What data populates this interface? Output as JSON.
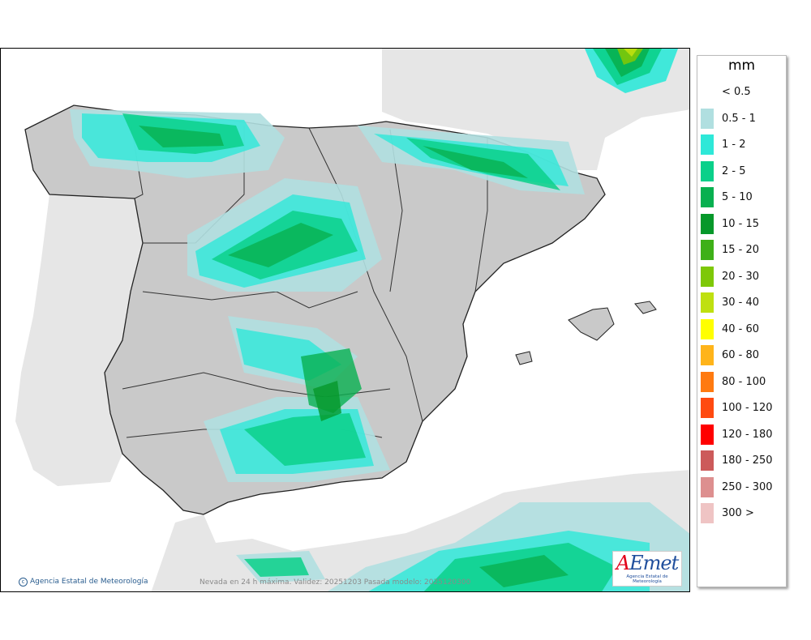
{
  "map": {
    "credit": "Agencia Estatal de Meteorología",
    "caption": "Nevada en 24 h máxima. Validez: 20251203 Pasada modelo: 2025120300",
    "logo": {
      "wordmark_a": "A",
      "wordmark_rest": "Emet",
      "sublabel": "Agencia Estatal de Meteorología"
    },
    "colors": {
      "sea": "#ffffff",
      "land": "#c9c9c9",
      "other_land": "#e6e6e6",
      "borders": "#222222"
    }
  },
  "legend": {
    "unit": "mm",
    "items": [
      {
        "label": "< 0.5",
        "color": "#ffffff"
      },
      {
        "label": "0.5 - 1",
        "color": "#b0dfe0"
      },
      {
        "label": "1 - 2",
        "color": "#2ee8d8"
      },
      {
        "label": "2 - 5",
        "color": "#0ad08a"
      },
      {
        "label": "5 - 10",
        "color": "#08b050"
      },
      {
        "label": "10 - 15",
        "color": "#06982a"
      },
      {
        "label": "15 - 20",
        "color": "#3eb018"
      },
      {
        "label": "20 - 30",
        "color": "#7ec808"
      },
      {
        "label": "30 - 40",
        "color": "#bfe010"
      },
      {
        "label": "40 - 60",
        "color": "#ffff00"
      },
      {
        "label": "60 - 80",
        "color": "#ffb41a"
      },
      {
        "label": "80 - 100",
        "color": "#ff7a10"
      },
      {
        "label": "100 - 120",
        "color": "#ff4a10"
      },
      {
        "label": "120 - 180",
        "color": "#ff0000"
      },
      {
        "label": "180 - 250",
        "color": "#cc5a5a"
      },
      {
        "label": "250 - 300",
        "color": "#dd8f8f"
      },
      {
        "label": "300 >",
        "color": "#efc4c4"
      }
    ]
  }
}
